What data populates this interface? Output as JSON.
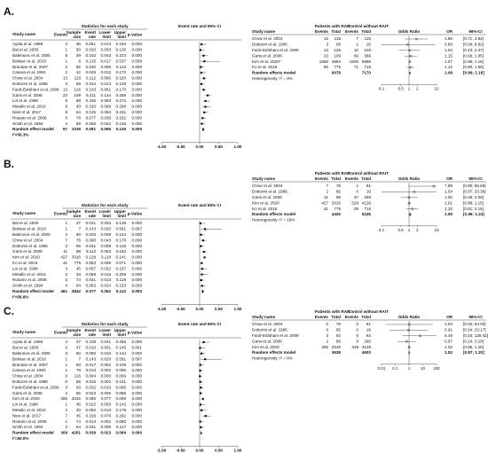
{
  "left_headers": {
    "study": "Study name",
    "stats": "Statistics for each study",
    "plot": "Event rate and 95% CI",
    "cols": [
      [
        "Events"
      ],
      [
        "Sample",
        "size"
      ],
      [
        "Event",
        "rate"
      ],
      [
        "Lower",
        "limit"
      ],
      [
        "Upper",
        "limit"
      ],
      [
        "p-Value"
      ]
    ]
  },
  "right_headers": {
    "study": "Study name",
    "group1": "Patients with RAIT",
    "group2": "Control without RAIT",
    "events": "Events",
    "total": "Total",
    "plot": "Odds Ratio",
    "or": "OR",
    "ci": "95%-CI"
  },
  "panels": [
    {
      "label": "A.",
      "left": {
        "rows": [
          [
            "Ayala et al. 1998",
            "2",
            "36",
            "0.051",
            "0.013",
            "0.183",
            "0.000"
          ],
          [
            "Bal et al. 2005",
            "1",
            "50",
            "0.020",
            "0.003",
            "0.130",
            "0.000"
          ],
          [
            "Balenovic et al. 2006",
            "5",
            "49",
            "0.102",
            "0.043",
            "0.223",
            "0.000"
          ],
          [
            "Beksac et al. 2018",
            "1",
            "8",
            "0.125",
            "0.017",
            "0.537",
            "0.069"
          ],
          [
            "Brandao et al. 2007",
            "2",
            "66",
            "0.030",
            "0.008",
            "0.113",
            "0.000"
          ],
          [
            "Casara et al. 1993",
            "2",
            "42",
            "0.048",
            "0.012",
            "0.172",
            "0.000"
          ],
          [
            "Chow et al. 2004",
            "13",
            "116",
            "0.112",
            "0.066",
            "0.183",
            "0.000"
          ],
          [
            "Dottorini et al. 1995",
            "3",
            "68",
            "0.044",
            "0.014",
            "0.128",
            "0.000"
          ],
          [
            "Fardi-Esfahani et al. 2009",
            "13",
            "126",
            "0.103",
            "0.061",
            "0.170",
            "0.000"
          ],
          [
            "Garsi et al. 2008",
            "23",
            "109",
            "0.211",
            "0.144",
            "0.298",
            "0.000"
          ],
          [
            "Lin et al. 1998",
            "9",
            "58",
            "0.155",
            "0.083",
            "0.272",
            "0.000"
          ],
          [
            "Metallo et al. 2016",
            "6",
            "40",
            "0.150",
            "0.069",
            "0.298",
            "0.000"
          ],
          [
            "Nies et al. 2017",
            "8",
            "64",
            "0.125",
            "0.064",
            "0.231",
            "0.000"
          ],
          [
            "Rosario et al. 2006",
            "6",
            "78",
            "0.077",
            "0.035",
            "0.162",
            "0.000"
          ],
          [
            "Smith et al. 1994",
            "4",
            "69",
            "0.058",
            "0.022",
            "0.145",
            "0.000"
          ]
        ],
        "summary": [
          "Random effect model",
          "97",
          "1019",
          "0.091",
          "0.066",
          "0.125",
          "0.000"
        ],
        "heterogeneity": "I²=56.3%",
        "xlim": [
          -1,
          1
        ],
        "xticks": [
          {
            "value": -1,
            "label": "-1.00"
          },
          {
            "value": -0.5,
            "label": "-0.50"
          },
          {
            "value": 0,
            "label": "0.00"
          },
          {
            "value": 0.5,
            "label": "0.50"
          },
          {
            "value": 1,
            "label": "1.00"
          }
        ]
      },
      "right": {
        "rows": [
          {
            "study": "Chow et al. 2004",
            "e1": 13,
            "n1": 116,
            "e2": 7,
            "n2": 110,
            "or": "1.86",
            "ci": {
              "lower": 0.71,
              "upper": 4.84,
              "label": "[0.71; 4.84]"
            }
          },
          {
            "study": "Dottorini et al. 1995",
            "e1": 3,
            "n1": 68,
            "e2": 1,
            "n2": 20,
            "or": "0.88",
            "ci": {
              "lower": 0.09,
              "upper": 8.92,
              "label": "[0.09; 8.92]"
            }
          },
          {
            "study": "Fardi-Esfahani et al. 2009",
            "e1": 13,
            "n1": 126,
            "e2": 10,
            "n2": 100,
            "or": "1.04",
            "ci": {
              "lower": 0.43,
              "upper": 2.47,
              "label": "[0.43; 2.47]"
            }
          },
          {
            "study": "Garsi et al. 2008",
            "e1": 23,
            "n1": 109,
            "e2": 69,
            "n2": 366,
            "or": "1.15",
            "ci": {
              "lower": 0.68,
              "upper": 1.95,
              "label": "[0.68; 1.95]"
            }
          },
          {
            "study": "Kim et al. 2020*",
            "e1": 1568,
            "n1": 4884,
            "e2": 1829,
            "n2": 5858,
            "or": "1.07",
            "ci": {
              "lower": 0.98,
              "upper": 1.16,
              "label": "[0.98; 1.16]"
            }
          },
          {
            "study": "Ko et al. 2016",
            "e1": 85,
            "n1": 775,
            "e2": 71,
            "n2": 716,
            "or": "1.12",
            "ci": {
              "lower": 0.8,
              "upper": 1.56,
              "label": "[0.80; 1.56]"
            }
          }
        ],
        "summary": {
          "study": "Random effects model",
          "n1": 6078,
          "n2": 7170,
          "or": "1.08",
          "ci": {
            "lower": 0.99,
            "upper": 1.18,
            "label": "[0.99; 1.18]"
          }
        },
        "heterogeneity": "Heterogeneity: I² = 0%",
        "xlim": [
          0.1,
          10
        ],
        "xticks": [
          0.1,
          0.5,
          1,
          2,
          10
        ]
      }
    },
    {
      "label": "B.",
      "left": {
        "rows": [
          [
            "Bal et al. 2005",
            "1",
            "47",
            "0.021",
            "0.003",
            "0.138",
            "0.000"
          ],
          [
            "Beksac et al. 2018",
            "1",
            "7",
            "0.143",
            "0.020",
            "0.581",
            "0.097"
          ],
          [
            "Balenovic et al. 2006",
            "2",
            "60",
            "0.033",
            "0.008",
            "0.124",
            "0.000"
          ],
          [
            "Chow et al. 2004",
            "7",
            "78",
            "0.090",
            "0.043",
            "0.176",
            "0.000"
          ],
          [
            "Dottorini et al. 1995",
            "2",
            "65",
            "0.031",
            "0.008",
            "0.115",
            "0.000"
          ],
          [
            "Garsi et al. 2008",
            "11",
            "98",
            "0.112",
            "0.063",
            "0.192",
            "0.000"
          ],
          [
            "Kim et al. 2020",
            "427",
            "3316",
            "0.129",
            "0.118",
            "0.141",
            "0.000"
          ],
          [
            "Ko et al. 2016",
            "41",
            "775",
            "0.053",
            "0.039",
            "0.071",
            "0.000"
          ],
          [
            "Lin et al. 1998",
            "3",
            "45",
            "0.067",
            "0.022",
            "0.187",
            "0.000"
          ],
          [
            "Metallo et al. 2016",
            "2",
            "34",
            "0.059",
            "0.015",
            "0.208",
            "0.000"
          ],
          [
            "Rosario et al. 2006",
            "3",
            "74",
            "0.041",
            "0.013",
            "0.118",
            "0.000"
          ],
          [
            "Smith et al. 1994",
            "4",
            "64",
            "0.063",
            "0.024",
            "0.153",
            "0.000"
          ]
        ],
        "summary": [
          "Random effect model",
          "461",
          "3842",
          "0.077",
          "0.052",
          "0.113",
          "0.000"
        ],
        "heterogeneity": "I²=56.8%",
        "xlim": [
          -1,
          1
        ],
        "xticks": [
          {
            "value": -1,
            "label": "-1.00"
          },
          {
            "value": -0.5,
            "label": "-0.50"
          },
          {
            "value": 0,
            "label": "0.00"
          },
          {
            "value": 0.5,
            "label": "0.50"
          },
          {
            "value": 1,
            "label": "1.00"
          }
        ]
      },
      "right": {
        "rows": [
          {
            "study": "Chow et al. 2004",
            "e1": 7,
            "n1": 78,
            "e2": 1,
            "n2": 81,
            "or": "7.89",
            "ci": {
              "lower": 0.95,
              "upper": 65.68,
              "label": "[0.95; 65.68]"
            }
          },
          {
            "study": "Dottorini et al. 1995",
            "e1": 2,
            "n1": 65,
            "e2": 0,
            "n2": 19,
            "or": "1.54",
            "ci": {
              "lower": 0.07,
              "upper": 33.36,
              "label": "[0.07; 33.36]"
            }
          },
          {
            "study": "Garsi et al. 2008",
            "e1": 11,
            "n1": 98,
            "e2": 37,
            "n2": 290,
            "or": "1.00",
            "ci": {
              "lower": 0.49,
              "upper": 2.06,
              "label": "[0.49; 2.06]"
            }
          },
          {
            "study": "Kim et al. 2020",
            "e1": 427,
            "n1": 3316,
            "e2": 529,
            "n2": 4129,
            "or": "1.01",
            "ci": {
              "lower": 0.88,
              "upper": 1.15,
              "label": "[0.88; 1.15]"
            }
          },
          {
            "study": "Ko et al. 2016",
            "e1": 41,
            "n1": 775,
            "e2": 29,
            "n2": 716,
            "or": "1.32",
            "ci": {
              "lower": 0.81,
              "upper": 2.15,
              "label": "[0.81; 2.15]"
            }
          }
        ],
        "summary": {
          "study": "Random effects model",
          "n1": 4320,
          "n2": 5235,
          "or": "1.09",
          "ci": {
            "lower": 0.96,
            "upper": 1.24,
            "label": "[0.96; 1.24]"
          }
        },
        "heterogeneity": "Heterogeneity: I² = 16%",
        "xlim": [
          0.1,
          10
        ],
        "xticks": [
          0.1,
          0.5,
          1,
          2,
          10
        ]
      }
    },
    {
      "label": "C.",
      "left": {
        "rows": [
          [
            "Ayala et al. 1998",
            "4",
            "37",
            "0.108",
            "0.041",
            "0.255",
            "0.000"
          ],
          [
            "Bal et al. 2005",
            "0",
            "47",
            "0.010",
            "0.001",
            "0.146",
            "0.001"
          ],
          [
            "Balenovic et al. 2006",
            "3",
            "60",
            "0.050",
            "0.016",
            "0.144",
            "0.000"
          ],
          [
            "Beksac et al. 2018",
            "1",
            "7",
            "0.143",
            "0.020",
            "0.581",
            "0.097"
          ],
          [
            "Brandao et al. 2007",
            "1",
            "60",
            "0.017",
            "0.002",
            "0.109",
            "0.000"
          ],
          [
            "Casara et al. 1993",
            "1",
            "78",
            "0.013",
            "0.002",
            "0.085",
            "0.000"
          ],
          [
            "Chow et al. 2004",
            "0",
            "116",
            "0.004",
            "0.000",
            "0.066",
            "0.000"
          ],
          [
            "Dottorini et al. 1995",
            "0",
            "65",
            "0.015",
            "0.002",
            "0.101",
            "0.000"
          ],
          [
            "Fardi-Esfahani et al. 2009",
            "3",
            "93",
            "0.032",
            "0.010",
            "0.095",
            "0.000"
          ],
          [
            "Garsi et al. 2008",
            "2",
            "86",
            "0.023",
            "0.006",
            "0.088",
            "0.000"
          ],
          [
            "Kim et al. 2020",
            "285",
            "3316",
            "0.086",
            "0.077",
            "0.096",
            "0.000"
          ],
          [
            "Lin et al. 1998",
            "1",
            "45",
            "0.022",
            "0.003",
            "0.142",
            "0.000"
          ],
          [
            "Metallo et al. 2016",
            "2",
            "40",
            "0.050",
            "0.013",
            "0.179",
            "0.000"
          ],
          [
            "Nies et al. 2017",
            "7",
            "45",
            "0.156",
            "0.076",
            "0.292",
            "0.000"
          ],
          [
            "Rosario et al. 2006",
            "1",
            "74",
            "0.014",
            "0.002",
            "0.090",
            "0.000"
          ],
          [
            "Smith et al. 1994",
            "2",
            "64",
            "0.031",
            "0.008",
            "0.117",
            "0.000"
          ]
        ],
        "summary": [
          "Random effect model",
          "309",
          "4201",
          "0.039",
          "0.023",
          "0.064",
          "0.000"
        ],
        "heterogeneity": "I²=60.0%",
        "xlim": [
          -1,
          1
        ],
        "xticks": [
          {
            "value": -1,
            "label": "-1.00"
          },
          {
            "value": -0.5,
            "label": "-0.50"
          },
          {
            "value": 0,
            "label": "0.00"
          },
          {
            "value": 0.5,
            "label": "0.50"
          },
          {
            "value": 1,
            "label": "1.00"
          }
        ]
      },
      "right": {
        "rows": [
          {
            "study": "Chow et al. 2004",
            "e1": 0,
            "n1": 78,
            "e2": 0,
            "n2": 81,
            "or": "1.04",
            "ci": {
              "lower": 0.02,
              "upper": 53.0,
              "label": "[0.02; 53.00]"
            }
          },
          {
            "study": "Dottorini et al. 1995",
            "e1": 0,
            "n1": 65,
            "e2": 0,
            "n2": 19,
            "or": "0.91",
            "ci": {
              "lower": 0.04,
              "upper": 23.17,
              "label": "[0.04; 23.17]"
            }
          },
          {
            "study": "Fardi-Esfahani et al. 2009",
            "e1": 3,
            "n1": 93,
            "e2": 0,
            "n2": 84,
            "or": "6.49",
            "ci": {
              "lower": 0.33,
              "upper": 128.42,
              "label": "[0.33; 128.42]"
            }
          },
          {
            "study": "Garsi et al. 2008",
            "e1": 2,
            "n1": 86,
            "e2": 8,
            "n2": 290,
            "or": "0.67",
            "ci": {
              "lower": 0.14,
              "upper": 3.19,
              "label": "[0.14; 3.19]"
            }
          },
          {
            "study": "Kim et al. 2020",
            "e1": 285,
            "n1": 3316,
            "e2": 349,
            "n2": 4129,
            "or": "1.02",
            "ci": {
              "lower": 0.86,
              "upper": 1.2,
              "label": "[0.86; 1.20]"
            }
          }
        ],
        "summary": {
          "study": "Random effects model",
          "n1": 3638,
          "n2": 4603,
          "or": "1.02",
          "ci": {
            "lower": 0.87,
            "upper": 1.2,
            "label": "[0.87; 1.20]"
          }
        },
        "heterogeneity": "Heterogeneity: I² = 0%",
        "xlim": [
          0.01,
          100
        ],
        "xticks": [
          0.01,
          0.1,
          1,
          10,
          100
        ]
      }
    }
  ]
}
